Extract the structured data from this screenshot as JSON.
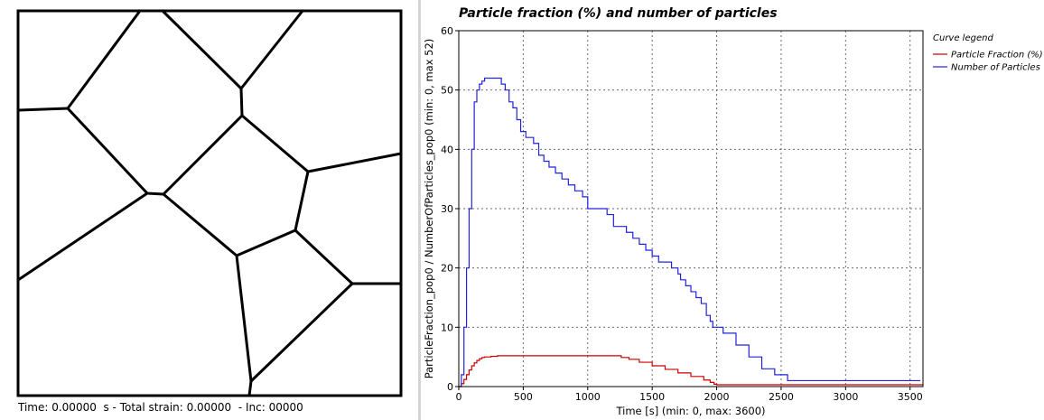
{
  "status": {
    "text": "Time: 0.00000  s - Total strain: 0.00000  - Inc: 00000"
  },
  "colors": {
    "particle_fraction": "#cc0000",
    "number_of_particles": "#2222dd",
    "grid": "#6a6a6a",
    "grain_boundary": "#000000"
  },
  "chart_data": {
    "type": "line",
    "title": "Particle fraction (%) and number of particles",
    "xlabel": "Time [s] (min: 0, max: 3600)",
    "ylabel": "ParticleFraction_pop0 / NumberOfParticles_pop0 (min: 0, max 52)",
    "xlim": [
      0,
      3600
    ],
    "ylim": [
      0,
      60
    ],
    "x_ticks": [
      0,
      500,
      1000,
      1500,
      2000,
      2500,
      3000,
      3500
    ],
    "y_ticks": [
      0,
      10,
      20,
      30,
      40,
      50,
      60
    ],
    "grid": true,
    "legend_placement": "right",
    "legend_title": "Curve legend",
    "series": [
      {
        "name": "Particle Fraction (%)",
        "color": "#cc0000",
        "step": true,
        "x": [
          0,
          20,
          40,
          60,
          80,
          100,
          120,
          140,
          160,
          180,
          200,
          250,
          300,
          400,
          800,
          1200,
          1260,
          1320,
          1400,
          1500,
          1600,
          1700,
          1800,
          1900,
          1950,
          1980,
          2000,
          3600
        ],
        "y": [
          0,
          0.5,
          1.2,
          2.0,
          2.8,
          3.5,
          4.0,
          4.4,
          4.7,
          4.9,
          5.0,
          5.1,
          5.2,
          5.2,
          5.2,
          5.2,
          4.9,
          4.6,
          4.1,
          3.5,
          2.9,
          2.3,
          1.7,
          1.1,
          0.7,
          0.4,
          0.3,
          0.3
        ]
      },
      {
        "name": "Number of Particles",
        "color": "#2222dd",
        "step": true,
        "x": [
          0,
          20,
          40,
          60,
          80,
          100,
          120,
          140,
          160,
          180,
          200,
          250,
          330,
          360,
          390,
          420,
          450,
          480,
          520,
          580,
          620,
          660,
          700,
          750,
          800,
          850,
          900,
          960,
          1000,
          1100,
          1150,
          1200,
          1260,
          1300,
          1350,
          1400,
          1450,
          1500,
          1550,
          1600,
          1650,
          1700,
          1720,
          1760,
          1800,
          1840,
          1880,
          1920,
          1950,
          1970,
          2000,
          2050,
          2150,
          2250,
          2350,
          2450,
          2550,
          3000,
          3580
        ],
        "y": [
          0,
          2,
          10,
          20,
          30,
          40,
          48,
          50,
          51,
          51.5,
          52,
          52,
          51,
          50,
          48,
          47,
          45,
          43,
          42,
          41,
          39,
          38,
          37,
          36,
          35,
          34,
          33,
          32,
          30,
          30,
          29,
          27,
          27,
          26,
          25,
          24,
          23,
          22,
          21,
          21,
          20,
          19,
          18,
          17,
          16,
          15,
          14,
          12,
          11,
          10,
          10,
          9,
          7,
          5,
          3,
          2,
          1,
          1,
          1
        ]
      }
    ]
  }
}
